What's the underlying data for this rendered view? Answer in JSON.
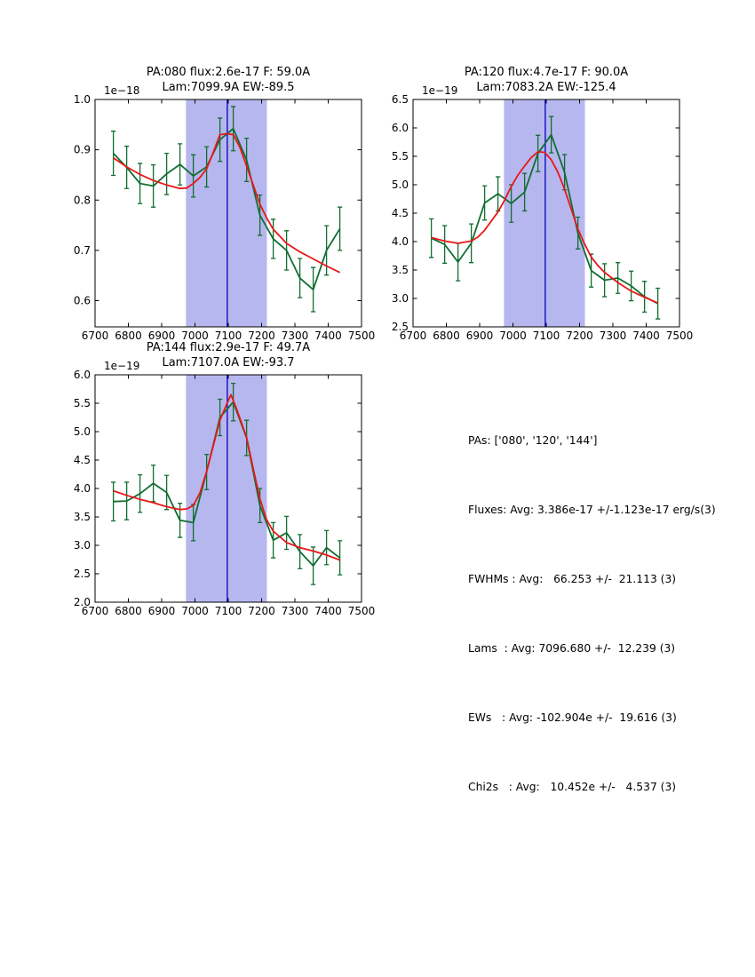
{
  "colors": {
    "spectrum": "#116e31",
    "errorbar": "#116e31",
    "fit": "#e81717",
    "band": "#b7b7ef",
    "center_line": "#0000bf",
    "axis": "#000000",
    "text": "#000000"
  },
  "stats": {
    "lines": [
      "PAs: ['080', '120', '144']",
      "Fluxes: Avg: 3.386e-17 +/-1.123e-17 erg/s(3)",
      "FWHMs : Avg:   66.253 +/-  21.113 (3)",
      "Lams  : Avg: 7096.680 +/-  12.239 (3)",
      "EWs   : Avg: -102.904e +/-  19.616 (3)",
      "Chi2s   : Avg:   10.452e +/-   4.537 (3)"
    ]
  },
  "chart_data": [
    {
      "type": "line",
      "name": "subplot-pa080",
      "title_line1": "PA:080 flux:2.6e-17 F: 59.0A",
      "title_line2": "Lam:7099.9A EW:-89.5",
      "offset_label": "1e−18",
      "xlabel": "",
      "ylabel": "",
      "xlim": [
        6700,
        7500
      ],
      "ylim": [
        0.548,
        1.0
      ],
      "xticks": [
        6700,
        6800,
        6900,
        7000,
        7100,
        7200,
        7300,
        7400,
        7500
      ],
      "yticks": [
        0.6,
        0.7,
        0.8,
        0.9,
        1.0
      ],
      "ytick_decimals": 1,
      "grid": false,
      "band": [
        6973,
        7216
      ],
      "center_wavelength": 7097,
      "x": [
        6755,
        6795,
        6835,
        6875,
        6915,
        6955,
        6995,
        7035,
        7075,
        7115,
        7155,
        7195,
        7235,
        7275,
        7315,
        7355,
        7395,
        7435
      ],
      "series": [
        {
          "name": "spectrum",
          "values": [
            0.893,
            0.865,
            0.833,
            0.828,
            0.852,
            0.871,
            0.848,
            0.866,
            0.92,
            0.942,
            0.88,
            0.77,
            0.723,
            0.7,
            0.645,
            0.622,
            0.7,
            0.743
          ],
          "errors": [
            0.044,
            0.042,
            0.04,
            0.042,
            0.041,
            0.041,
            0.042,
            0.04,
            0.043,
            0.044,
            0.043,
            0.04,
            0.039,
            0.039,
            0.039,
            0.044,
            0.049,
            0.043
          ]
        },
        {
          "name": "gaussian-fit",
          "x": [
            6755,
            6795,
            6835,
            6875,
            6915,
            6955,
            6975,
            6995,
            7015,
            7035,
            7055,
            7075,
            7095,
            7115,
            7135,
            7155,
            7175,
            7195,
            7215,
            7235,
            7275,
            7315,
            7355,
            7395,
            7435
          ],
          "values": [
            0.884,
            0.866,
            0.851,
            0.839,
            0.83,
            0.823,
            0.824,
            0.833,
            0.845,
            0.862,
            0.895,
            0.93,
            0.932,
            0.93,
            0.905,
            0.868,
            0.83,
            0.792,
            0.765,
            0.742,
            0.714,
            0.697,
            0.683,
            0.669,
            0.656
          ]
        }
      ]
    },
    {
      "type": "line",
      "name": "subplot-pa120",
      "title_line1": "PA:120 flux:4.7e-17 F: 90.0A",
      "title_line2": "Lam:7083.2A EW:-125.4",
      "offset_label": "1e−19",
      "xlabel": "",
      "ylabel": "",
      "xlim": [
        6700,
        7500
      ],
      "ylim": [
        2.5,
        6.5
      ],
      "xticks": [
        6700,
        6800,
        6900,
        7000,
        7100,
        7200,
        7300,
        7400,
        7500
      ],
      "yticks": [
        2.5,
        3.0,
        3.5,
        4.0,
        4.5,
        5.0,
        5.5,
        6.0,
        6.5
      ],
      "ytick_decimals": 1,
      "grid": false,
      "band": [
        6973,
        7216
      ],
      "center_wavelength": 7097,
      "x": [
        6755,
        6795,
        6835,
        6875,
        6915,
        6955,
        6995,
        7035,
        7075,
        7115,
        7155,
        7195,
        7235,
        7275,
        7315,
        7355,
        7395,
        7435
      ],
      "series": [
        {
          "name": "spectrum",
          "values": [
            4.06,
            3.95,
            3.64,
            3.97,
            4.68,
            4.84,
            4.67,
            4.87,
            5.55,
            5.88,
            5.22,
            4.15,
            3.49,
            3.32,
            3.36,
            3.22,
            3.03,
            2.91
          ],
          "errors": [
            0.34,
            0.33,
            0.33,
            0.34,
            0.3,
            0.3,
            0.33,
            0.33,
            0.32,
            0.32,
            0.31,
            0.28,
            0.29,
            0.29,
            0.27,
            0.26,
            0.27,
            0.27
          ]
        },
        {
          "name": "gaussian-fit",
          "x": [
            6755,
            6795,
            6835,
            6875,
            6895,
            6915,
            6955,
            6975,
            6995,
            7015,
            7035,
            7055,
            7075,
            7095,
            7115,
            7135,
            7155,
            7175,
            7195,
            7215,
            7235,
            7255,
            7275,
            7315,
            7355,
            7395,
            7435
          ],
          "values": [
            4.07,
            4.01,
            3.97,
            4.01,
            4.08,
            4.2,
            4.52,
            4.73,
            4.97,
            5.17,
            5.33,
            5.48,
            5.58,
            5.57,
            5.44,
            5.22,
            4.92,
            4.57,
            4.22,
            3.96,
            3.73,
            3.58,
            3.46,
            3.28,
            3.13,
            3.02,
            2.92
          ]
        }
      ]
    },
    {
      "type": "line",
      "name": "subplot-pa144",
      "title_line1": "PA:144 flux:2.9e-17 F: 49.7A",
      "title_line2": "Lam:7107.0A EW:-93.7",
      "offset_label": "1e−19",
      "xlabel": "",
      "ylabel": "",
      "xlim": [
        6700,
        7500
      ],
      "ylim": [
        2.0,
        6.0
      ],
      "xticks": [
        6700,
        6800,
        6900,
        7000,
        7100,
        7200,
        7300,
        7400,
        7500
      ],
      "yticks": [
        2.0,
        2.5,
        3.0,
        3.5,
        4.0,
        4.5,
        5.0,
        5.5,
        6.0
      ],
      "ytick_decimals": 1,
      "grid": false,
      "band": [
        6973,
        7216
      ],
      "center_wavelength": 7097,
      "x": [
        6755,
        6795,
        6835,
        6875,
        6915,
        6955,
        6995,
        7035,
        7075,
        7115,
        7155,
        7195,
        7235,
        7275,
        7315,
        7355,
        7395,
        7435
      ],
      "series": [
        {
          "name": "spectrum",
          "values": [
            3.77,
            3.78,
            3.91,
            4.09,
            3.93,
            3.44,
            3.4,
            4.29,
            5.25,
            5.52,
            4.89,
            3.7,
            3.09,
            3.22,
            2.89,
            2.64,
            2.96,
            2.78
          ],
          "errors": [
            0.34,
            0.33,
            0.33,
            0.32,
            0.3,
            0.3,
            0.32,
            0.31,
            0.32,
            0.33,
            0.31,
            0.3,
            0.31,
            0.29,
            0.3,
            0.33,
            0.3,
            0.3
          ]
        },
        {
          "name": "gaussian-fit",
          "x": [
            6755,
            6795,
            6835,
            6875,
            6915,
            6955,
            6975,
            6995,
            7015,
            7035,
            7055,
            7075,
            7095,
            7108,
            7125,
            7155,
            7175,
            7195,
            7215,
            7235,
            7275,
            7315,
            7355,
            7395,
            7435
          ],
          "values": [
            3.96,
            3.88,
            3.81,
            3.75,
            3.68,
            3.63,
            3.64,
            3.7,
            3.92,
            4.3,
            4.75,
            5.2,
            5.48,
            5.65,
            5.4,
            4.9,
            4.35,
            3.82,
            3.45,
            3.25,
            3.05,
            2.96,
            2.9,
            2.83,
            2.74
          ]
        }
      ]
    }
  ]
}
